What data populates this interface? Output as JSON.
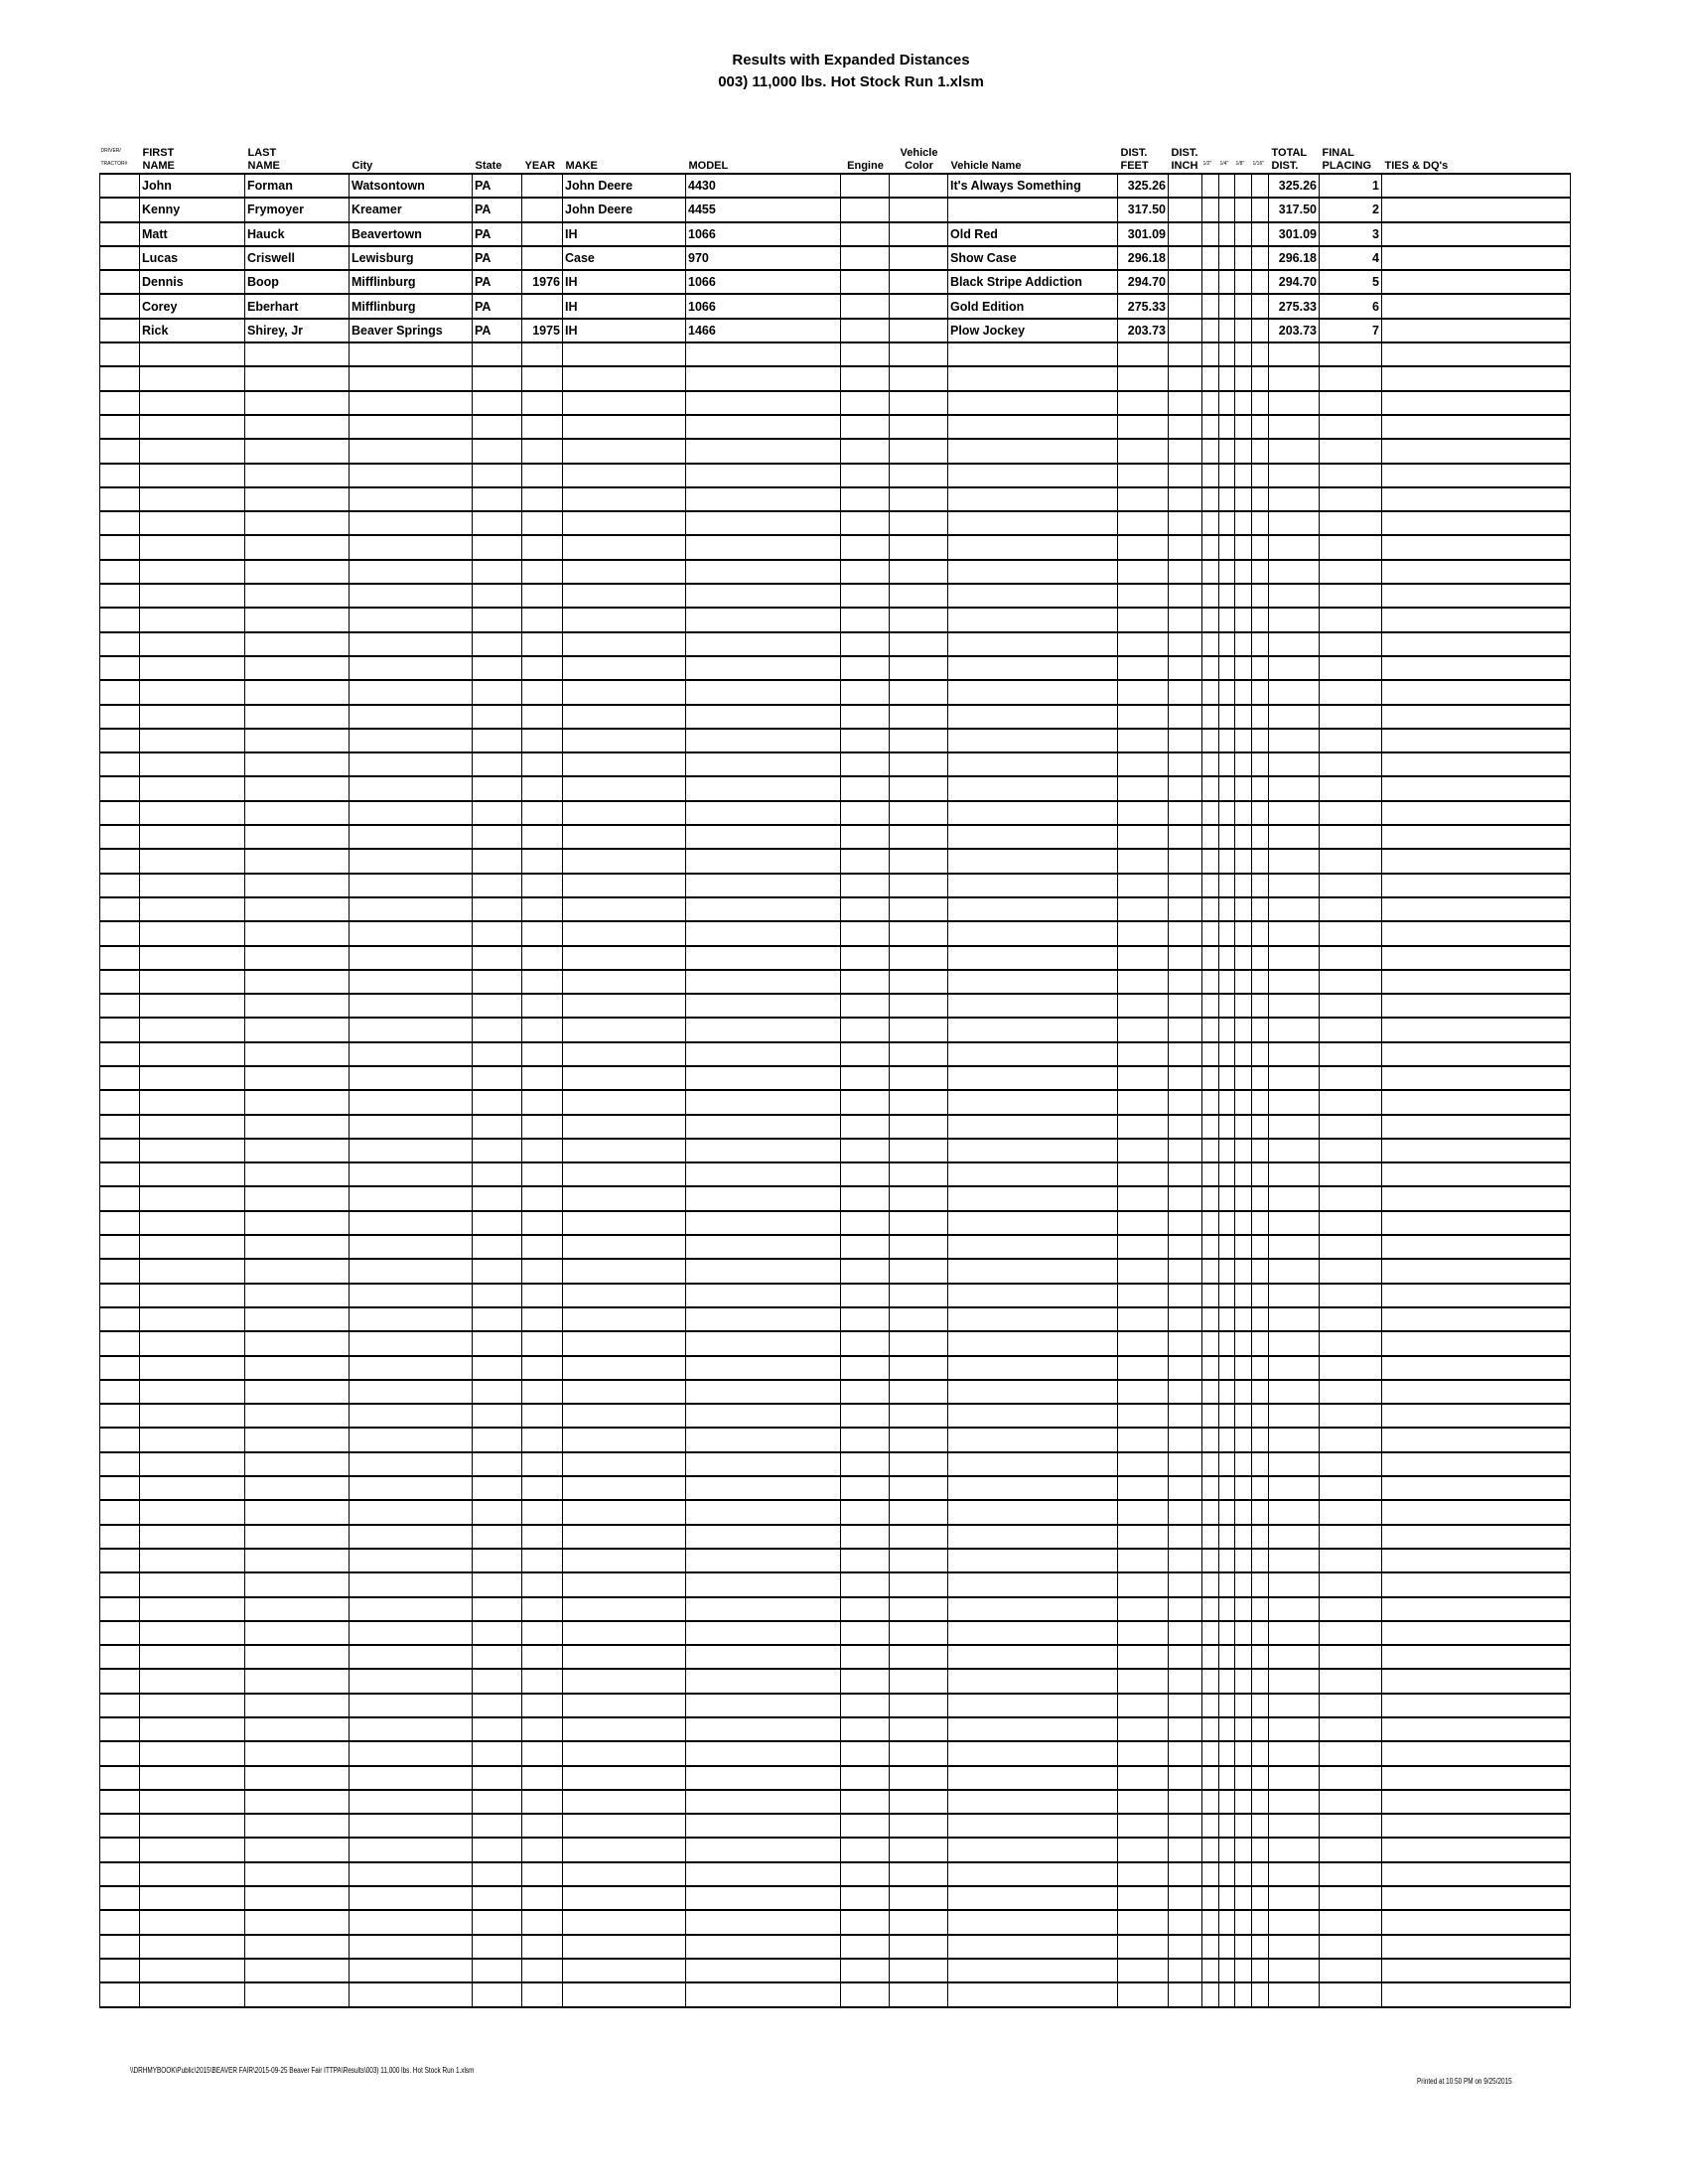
{
  "title": "Results with Expanded Distances",
  "subtitle": "003) 11,000 lbs. Hot Stock  Run 1.xlsm",
  "headers": {
    "driver": [
      "DRIVER/",
      "TRACTOR#"
    ],
    "first": [
      "FIRST",
      "NAME"
    ],
    "last": [
      "LAST",
      "NAME"
    ],
    "city": "City",
    "state": "State",
    "year": "YEAR",
    "make": "MAKE",
    "model": "MODEL",
    "engine": "Engine",
    "color": [
      "Vehicle",
      "Color"
    ],
    "vname": "Vehicle Name",
    "feet": [
      "DIST.",
      "FEET"
    ],
    "inch": [
      "DIST.",
      "INCH"
    ],
    "fractions": [
      "1/2\"",
      "1/4\"",
      "1/8\"",
      "1/16\""
    ],
    "total": [
      "TOTAL",
      "DIST."
    ],
    "placing": [
      "FINAL",
      "PLACING"
    ],
    "ties": "TIES & DQ's"
  },
  "rows": [
    {
      "first": "John",
      "last": "Forman",
      "city": "Watsontown",
      "state": "PA",
      "year": "",
      "make": "John Deere",
      "model": "4430",
      "engine": "",
      "color": "",
      "vname": "It's Always Something",
      "feet": "325.26",
      "inch": "",
      "total": "325.26",
      "placing": "1",
      "ties": ""
    },
    {
      "first": "Kenny",
      "last": "Frymoyer",
      "city": "Kreamer",
      "state": "PA",
      "year": "",
      "make": "John Deere",
      "model": "4455",
      "engine": "",
      "color": "",
      "vname": "",
      "feet": "317.50",
      "inch": "",
      "total": "317.50",
      "placing": "2",
      "ties": ""
    },
    {
      "first": "Matt",
      "last": "Hauck",
      "city": "Beavertown",
      "state": "PA",
      "year": "",
      "make": "IH",
      "model": "1066",
      "engine": "",
      "color": "",
      "vname": "Old Red",
      "feet": "301.09",
      "inch": "",
      "total": "301.09",
      "placing": "3",
      "ties": ""
    },
    {
      "first": "Lucas",
      "last": "Criswell",
      "city": "Lewisburg",
      "state": "PA",
      "year": "",
      "make": "Case",
      "model": "970",
      "engine": "",
      "color": "",
      "vname": "Show Case",
      "feet": "296.18",
      "inch": "",
      "total": "296.18",
      "placing": "4",
      "ties": ""
    },
    {
      "first": "Dennis",
      "last": "Boop",
      "city": "Mifflinburg",
      "state": "PA",
      "year": "1976",
      "make": "IH",
      "model": "1066",
      "engine": "",
      "color": "",
      "vname": "Black Stripe Addiction",
      "feet": "294.70",
      "inch": "",
      "total": "294.70",
      "placing": "5",
      "ties": ""
    },
    {
      "first": "Corey",
      "last": "Eberhart",
      "city": "Mifflinburg",
      "state": "PA",
      "year": "",
      "make": "IH",
      "model": "1066",
      "engine": "",
      "color": "",
      "vname": "Gold Edition",
      "feet": "275.33",
      "inch": "",
      "total": "275.33",
      "placing": "6",
      "ties": ""
    },
    {
      "first": "Rick",
      "last": "Shirey, Jr",
      "city": "Beaver Springs",
      "state": "PA",
      "year": "1975",
      "make": "IH",
      "model": "1466",
      "engine": "",
      "color": "",
      "vname": "Plow Jockey",
      "feet": "203.73",
      "inch": "",
      "total": "203.73",
      "placing": "7",
      "ties": ""
    }
  ],
  "footer": {
    "path": "\\\\DRHMYBOOK\\Public\\2015\\BEAVER FAIR\\2015-09-25 Beaver Fair ITTPA\\Results\\003) 11,000 lbs. Hot Stock  Run 1.xlsm",
    "printed": "Printed at 10:50 PM on 9/25/2015"
  }
}
